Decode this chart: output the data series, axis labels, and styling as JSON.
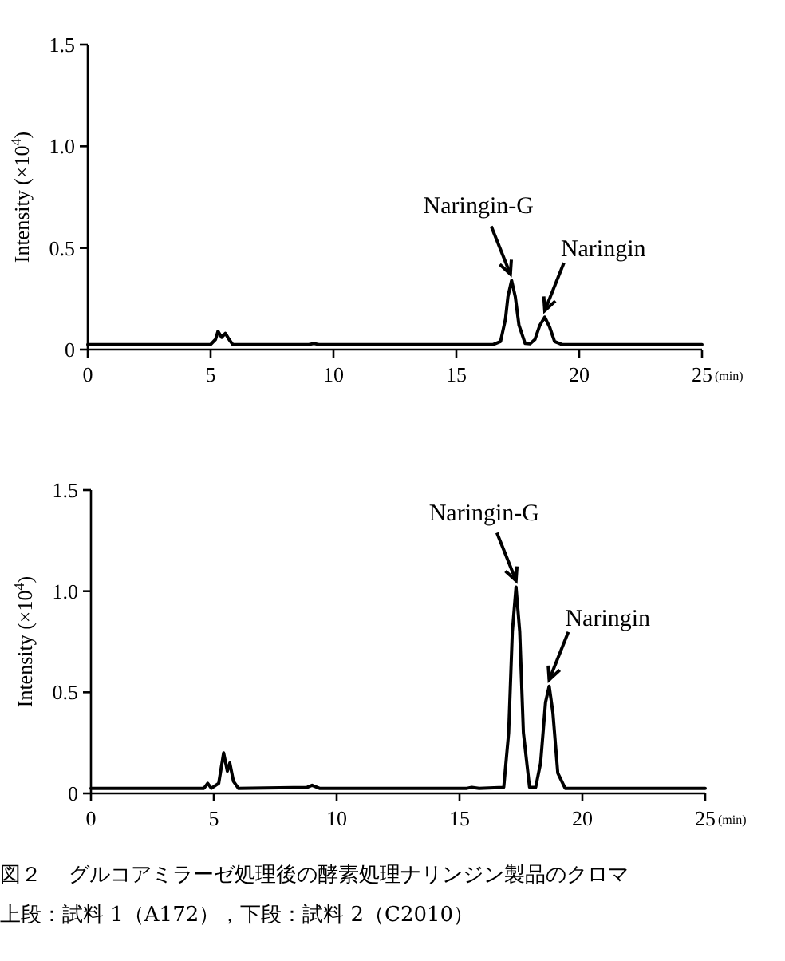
{
  "chart_data": [
    {
      "type": "line",
      "color": "#000000",
      "line_style": "solid",
      "marker": "none",
      "grid": false,
      "xlabel": "(min)",
      "ylabel": "Intensity (×10$^{4}$)",
      "xlim": [
        0,
        25
      ],
      "xticks": [
        0,
        5,
        10,
        15,
        20,
        25
      ],
      "ylim": [
        0,
        1.5
      ],
      "yticks": [
        0,
        {
          "value": 0.5,
          "label": "0.5"
        },
        {
          "value": 1,
          "label": "1.0"
        },
        {
          "value": 1.5,
          "label": "1.5"
        }
      ],
      "x": [
        0,
        5.0,
        5.2,
        5.3,
        5.45,
        5.6,
        5.75,
        5.9,
        9,
        9.2,
        9.4,
        16.5,
        16.8,
        17.0,
        17.1,
        17.25,
        17.4,
        17.55,
        17.8,
        18.0,
        18.2,
        18.4,
        18.6,
        18.8,
        19.0,
        19.3,
        25
      ],
      "values": [
        0.025,
        0.025,
        0.05,
        0.09,
        0.06,
        0.08,
        0.05,
        0.025,
        0.025,
        0.03,
        0.025,
        0.025,
        0.04,
        0.15,
        0.26,
        0.34,
        0.26,
        0.12,
        0.03,
        0.028,
        0.05,
        0.12,
        0.16,
        0.11,
        0.04,
        0.025,
        0.025
      ],
      "annotations": [
        {
          "text": "Naringin-G",
          "x": 17.2,
          "y": 0.34
        },
        {
          "text": "Naringin",
          "x": 18.6,
          "y": 0.16
        }
      ]
    },
    {
      "type": "line",
      "color": "#000000",
      "line_style": "solid",
      "marker": "none",
      "grid": false,
      "xlabel": "(min)",
      "ylabel": "Intensity (×10$^{4}$)",
      "xlim": [
        0,
        25
      ],
      "xticks": [
        0,
        5,
        10,
        15,
        20,
        25
      ],
      "ylim": [
        0,
        1.5
      ],
      "yticks": [
        0,
        {
          "value": 0.5,
          "label": "0.5"
        },
        {
          "value": 1,
          "label": "1.0"
        },
        {
          "value": 1.5,
          "label": "1.5"
        }
      ],
      "x": [
        0,
        4.6,
        4.75,
        4.9,
        5.2,
        5.4,
        5.55,
        5.65,
        5.8,
        6.0,
        8.8,
        9.0,
        9.3,
        15.3,
        15.5,
        15.8,
        16.8,
        17.0,
        17.15,
        17.3,
        17.45,
        17.6,
        17.85,
        18.1,
        18.3,
        18.5,
        18.65,
        18.8,
        19.0,
        19.3,
        25
      ],
      "values": [
        0.025,
        0.025,
        0.05,
        0.025,
        0.05,
        0.2,
        0.11,
        0.15,
        0.06,
        0.025,
        0.03,
        0.04,
        0.025,
        0.025,
        0.03,
        0.025,
        0.03,
        0.3,
        0.8,
        1.02,
        0.8,
        0.3,
        0.03,
        0.03,
        0.15,
        0.45,
        0.53,
        0.4,
        0.1,
        0.025,
        0.025
      ],
      "annotations": [
        {
          "text": "Naringin-G",
          "x": 17.3,
          "y": 1.02
        },
        {
          "text": "Naringin",
          "x": 18.65,
          "y": 0.53
        },
        "図２　 グルコアミラーゼ処理後の酵素処理ナリンジン製品のクロマ",
        "上段：試料 1（A172），下段：試料 2（C2010）"
      ]
    }
  ]
}
